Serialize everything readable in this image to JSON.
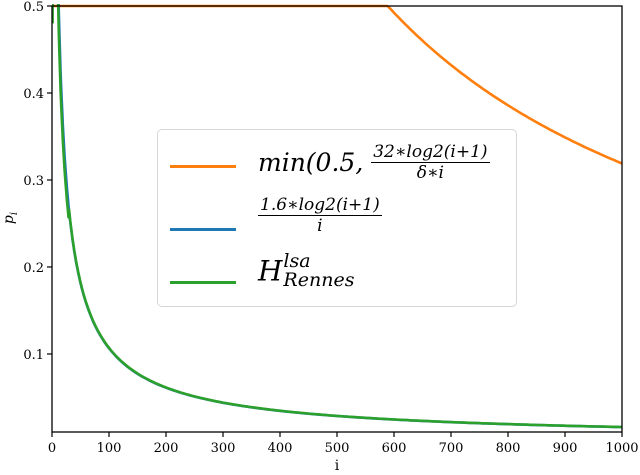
{
  "chart_data": {
    "type": "line",
    "title": "",
    "xlabel": "i",
    "ylabel": "p_i",
    "xlim": [
      0,
      1000
    ],
    "ylim": [
      0.0103,
      0.5
    ],
    "grid": false,
    "legend_position": "center",
    "x_ticks": [
      0,
      100,
      200,
      300,
      400,
      500,
      600,
      700,
      800,
      900,
      1000
    ],
    "x_tick_labels": [
      "0",
      "100",
      "200",
      "300",
      "400",
      "500",
      "600",
      "700",
      "800",
      "900",
      "1000"
    ],
    "y_ticks": [
      0.1,
      0.2,
      0.3,
      0.4,
      0.5
    ],
    "y_tick_labels": [
      "0.1",
      "0.2",
      "0.3",
      "0.4",
      "0.5"
    ],
    "series": [
      {
        "name": "min(0.5, 32*log2(i+1)/(δ*i))",
        "color": "#ff7f0e",
        "formula": "min(0.5, 32*log2(i+1)/i)",
        "x": [
          1,
          100,
          200,
          300,
          400,
          500,
          591,
          600,
          700,
          800,
          900,
          1000
        ],
        "values": [
          0.5,
          0.5,
          0.5,
          0.5,
          0.5,
          0.5,
          0.499,
          0.492,
          0.432,
          0.386,
          0.349,
          0.319
        ]
      },
      {
        "name": "1.6*log2(i+1)/i",
        "color": "#1f77b4",
        "formula": "1.6*log2(i+1)/i",
        "x": [
          12,
          20,
          30,
          50,
          75,
          100,
          150,
          200,
          300,
          400,
          500,
          600,
          700,
          800,
          900,
          1000
        ],
        "values": [
          0.493,
          0.351,
          0.264,
          0.182,
          0.133,
          0.107,
          0.0773,
          0.0613,
          0.0439,
          0.0346,
          0.0287,
          0.0246,
          0.0216,
          0.0193,
          0.0175,
          0.016
        ]
      },
      {
        "name": "H^lsa_Rennes",
        "color": "#2ca02c",
        "x": [
          1,
          5,
          10,
          20,
          30,
          50,
          75,
          100,
          150,
          200,
          300,
          400,
          500,
          600,
          700,
          800,
          900,
          1000
        ],
        "values": [
          0.48,
          0.46,
          0.5,
          0.345,
          0.262,
          0.182,
          0.134,
          0.108,
          0.078,
          0.062,
          0.0442,
          0.0348,
          0.0289,
          0.0247,
          0.0217,
          0.0194,
          0.0176,
          0.0161
        ]
      }
    ]
  },
  "legend": {
    "items": [
      {
        "color": "#ff7f0e",
        "prefix": "min(0.5, ",
        "num": "32∗log2(i+1)",
        "den": "δ∗i"
      },
      {
        "color": "#1f77b4",
        "num": "1.6∗log2(i+1)",
        "den": "i"
      },
      {
        "color": "#2ca02c",
        "base": "H",
        "sup": "lsa",
        "sub": "Rennes"
      }
    ]
  },
  "axes": {
    "xlabel": "i",
    "ylabel_base": "p",
    "ylabel_sub": "i"
  }
}
